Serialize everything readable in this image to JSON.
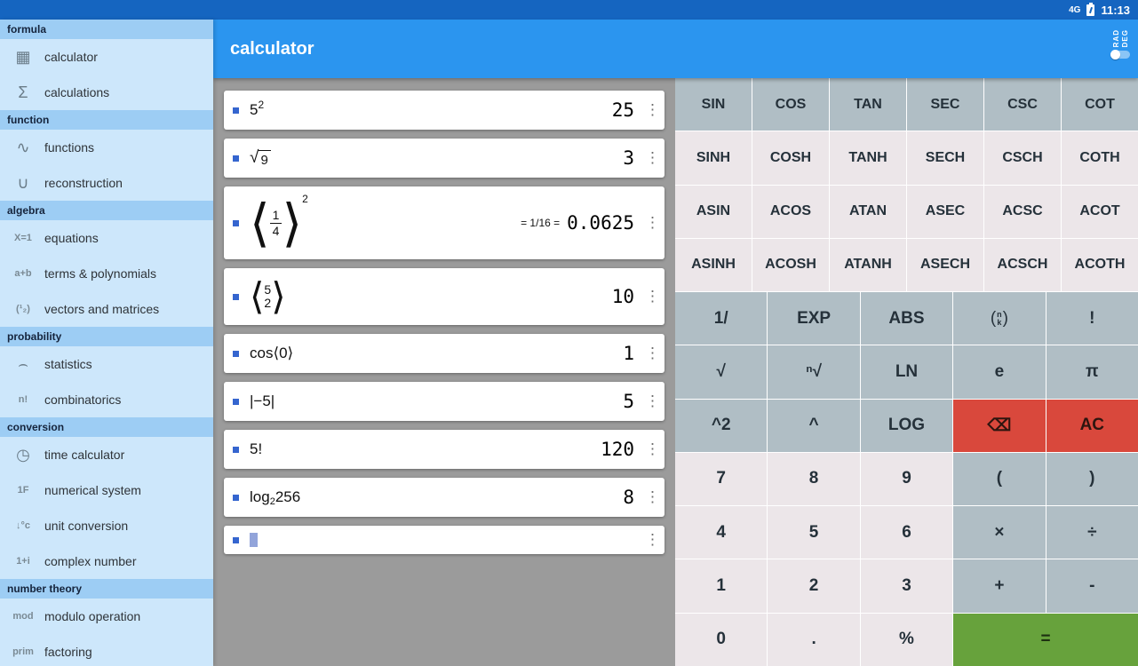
{
  "status_bar": {
    "time": "11:13",
    "network": "4G"
  },
  "app_bar": {
    "title": "calculator",
    "rad": "RAD",
    "deg": "DEG"
  },
  "sidebar": {
    "sections": [
      {
        "label": "formula",
        "items": [
          {
            "icon": "calculator-icon",
            "glyph": "▦",
            "label": "calculator"
          },
          {
            "icon": "sigma-icon",
            "glyph": "Σ",
            "label": "calculations"
          }
        ]
      },
      {
        "label": "function",
        "items": [
          {
            "icon": "sine-wave-icon",
            "glyph": "∿",
            "label": "functions"
          },
          {
            "icon": "curve-icon",
            "glyph": "∪",
            "label": "reconstruction"
          }
        ]
      },
      {
        "label": "algebra",
        "items": [
          {
            "icon": "equation-icon",
            "glyph": "X=1",
            "label": "equations"
          },
          {
            "icon": "terms-icon",
            "glyph": "a+b",
            "label": "terms & polynomials"
          },
          {
            "icon": "matrix-icon",
            "glyph": "(¹₂)",
            "label": "vectors and matrices"
          }
        ]
      },
      {
        "label": "probability",
        "items": [
          {
            "icon": "bell-curve-icon",
            "glyph": "⌢",
            "label": "statistics"
          },
          {
            "icon": "factorial-icon",
            "glyph": "n!",
            "label": "combinatorics"
          }
        ]
      },
      {
        "label": "conversion",
        "items": [
          {
            "icon": "clock-icon",
            "glyph": "◷",
            "label": "time calculator"
          },
          {
            "icon": "hex-icon",
            "glyph": "1F",
            "label": "numerical system"
          },
          {
            "icon": "unit-icon",
            "glyph": "↓°c",
            "label": "unit conversion"
          },
          {
            "icon": "complex-icon",
            "glyph": "1+i",
            "label": "complex number"
          }
        ]
      },
      {
        "label": "number theory",
        "items": [
          {
            "icon": "modulo-icon",
            "glyph": "mod",
            "label": "modulo operation"
          },
          {
            "icon": "prime-icon",
            "glyph": "prim",
            "label": "factoring"
          }
        ]
      }
    ]
  },
  "history": [
    {
      "parts": [
        {
          "t": "txt",
          "v": "5"
        },
        {
          "t": "sup",
          "v": "2"
        }
      ],
      "result": "25"
    },
    {
      "parts": [
        {
          "t": "sqrt",
          "v": "9"
        }
      ],
      "result": "3"
    },
    {
      "parts": [
        {
          "t": "lp",
          "s": "xl"
        },
        {
          "t": "frac",
          "n": "1",
          "d": "4"
        },
        {
          "t": "rp",
          "s": "xl"
        },
        {
          "t": "sup",
          "v": "2"
        }
      ],
      "mid": "= 1/16 =",
      "result": "0.0625"
    },
    {
      "parts": [
        {
          "t": "lp"
        },
        {
          "t": "stack",
          "a": "5",
          "b": "2"
        },
        {
          "t": "rp"
        }
      ],
      "result": "10"
    },
    {
      "parts": [
        {
          "t": "txt",
          "v": "cos⟨0⟩"
        }
      ],
      "result": "1"
    },
    {
      "parts": [
        {
          "t": "txt",
          "v": "|−5|"
        }
      ],
      "result": "5"
    },
    {
      "parts": [
        {
          "t": "txt",
          "v": "5!"
        }
      ],
      "result": "120"
    },
    {
      "parts": [
        {
          "t": "txt",
          "v": "log"
        },
        {
          "t": "sub",
          "v": "2"
        },
        {
          "t": "txt",
          "v": "256"
        }
      ],
      "result": "8"
    },
    {
      "parts": [
        {
          "t": "cursor"
        }
      ],
      "result": ""
    }
  ],
  "keyboard": {
    "trig_rows": [
      {
        "color": "gray",
        "keys": [
          "SIN",
          "COS",
          "TAN",
          "SEC",
          "CSC",
          "COT"
        ]
      },
      {
        "color": "light",
        "keys": [
          "SINH",
          "COSH",
          "TANH",
          "SECH",
          "CSCH",
          "COTH"
        ]
      },
      {
        "color": "light",
        "keys": [
          "ASIN",
          "ACOS",
          "ATAN",
          "ASEC",
          "ACSC",
          "ACOT"
        ]
      },
      {
        "color": "light",
        "keys": [
          "ASINH",
          "ACOSH",
          "ATANH",
          "ASECH",
          "ACSCH",
          "ACOTH"
        ]
      }
    ],
    "main_rows": [
      [
        {
          "label": "1/",
          "name": "reciprocal",
          "color": "gray"
        },
        {
          "label": "EXP",
          "name": "exp",
          "color": "gray"
        },
        {
          "label": "ABS",
          "name": "abs",
          "color": "gray"
        },
        {
          "label": "(n k)",
          "name": "n-choose-k",
          "type": "binom",
          "color": "gray"
        },
        {
          "label": "!",
          "name": "factorial",
          "color": "gray"
        }
      ],
      [
        {
          "label": "√",
          "name": "sqrt",
          "color": "gray"
        },
        {
          "label": "ⁿ√",
          "name": "nth-root",
          "color": "gray"
        },
        {
          "label": "LN",
          "name": "ln",
          "color": "gray"
        },
        {
          "label": "e",
          "name": "euler",
          "color": "gray"
        },
        {
          "label": "π",
          "name": "pi",
          "color": "gray"
        }
      ],
      [
        {
          "label": "^2",
          "name": "square",
          "color": "gray"
        },
        {
          "label": "^",
          "name": "power",
          "color": "gray"
        },
        {
          "label": "LOG",
          "name": "log",
          "color": "gray"
        },
        {
          "label": "⌫",
          "name": "backspace",
          "color": "red"
        },
        {
          "label": "AC",
          "name": "all-clear",
          "color": "red"
        }
      ],
      [
        {
          "label": "7",
          "name": "7",
          "color": "light"
        },
        {
          "label": "8",
          "name": "8",
          "color": "light"
        },
        {
          "label": "9",
          "name": "9",
          "color": "light"
        },
        {
          "label": "(",
          "name": "open-paren",
          "color": "gray"
        },
        {
          "label": ")",
          "name": "close-paren",
          "color": "gray"
        }
      ],
      [
        {
          "label": "4",
          "name": "4",
          "color": "light"
        },
        {
          "label": "5",
          "name": "5",
          "color": "light"
        },
        {
          "label": "6",
          "name": "6",
          "color": "light"
        },
        {
          "label": "×",
          "name": "multiply",
          "color": "gray"
        },
        {
          "label": "÷",
          "name": "divide",
          "color": "gray"
        }
      ],
      [
        {
          "label": "1",
          "name": "1",
          "color": "light"
        },
        {
          "label": "2",
          "name": "2",
          "color": "light"
        },
        {
          "label": "3",
          "name": "3",
          "color": "light"
        },
        {
          "label": "+",
          "name": "plus",
          "color": "gray"
        },
        {
          "label": "-",
          "name": "minus",
          "color": "gray"
        }
      ],
      [
        {
          "label": "0",
          "name": "0",
          "color": "light"
        },
        {
          "label": ".",
          "name": "decimal",
          "color": "light"
        },
        {
          "label": "%",
          "name": "percent",
          "color": "light"
        },
        {
          "label": "=",
          "name": "equals",
          "color": "green",
          "span": 2
        }
      ]
    ]
  }
}
